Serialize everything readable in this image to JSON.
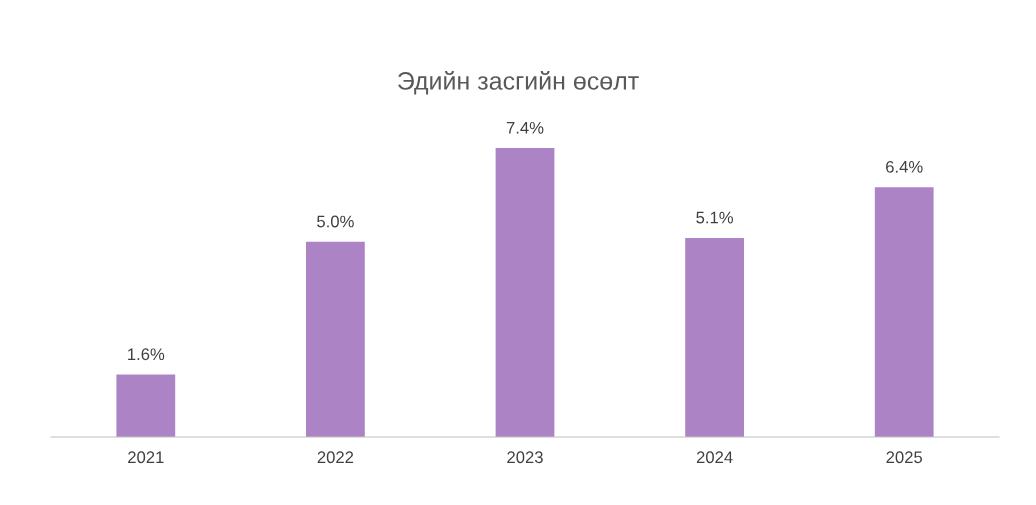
{
  "chart_data": {
    "type": "bar",
    "title": "Эдийн засгийн өсөлт",
    "categories": [
      "2021",
      "2022",
      "2023",
      "2024",
      "2025"
    ],
    "values": [
      1.6,
      5.0,
      7.4,
      5.1,
      6.4
    ],
    "value_labels": [
      "1.6%",
      "5.0%",
      "7.4%",
      "5.1%",
      "6.4%"
    ],
    "color": "#ac84c6",
    "tick_labels": "x",
    "grid": false,
    "legend": false
  }
}
